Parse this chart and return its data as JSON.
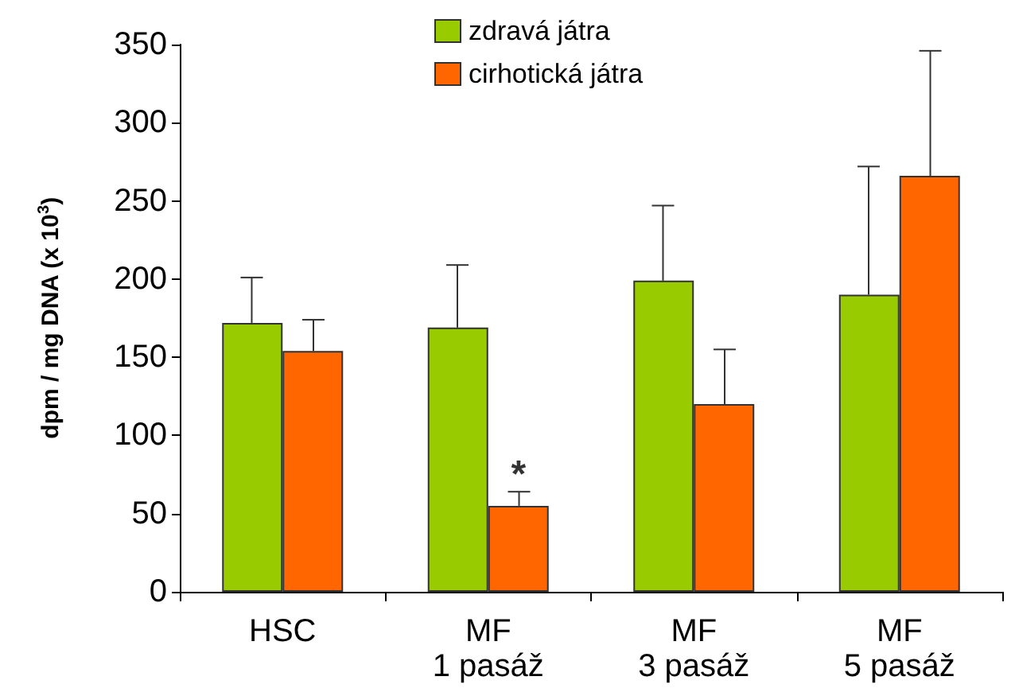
{
  "chart_data": {
    "type": "bar",
    "ylabel": "dpm / mg DNA (x 10$^{3}$)",
    "categories": [
      "HSC",
      "MF\n1 pasáž",
      "MF\n3 pasáž",
      "MF\n5 pasáž"
    ],
    "series": [
      {
        "name": "zdravá játra",
        "color": "#99cc00",
        "values": [
          172,
          169,
          199,
          190
        ],
        "errors": [
          [
            172,
            201
          ],
          [
            169,
            209
          ],
          [
            199,
            247
          ],
          [
            190,
            272
          ]
        ]
      },
      {
        "name": "cirhotická játra",
        "color": "#ff6600",
        "values": [
          154,
          55,
          120,
          266
        ],
        "errors": [
          [
            154,
            174
          ],
          [
            55,
            64
          ],
          [
            120,
            155
          ],
          [
            266,
            346
          ]
        ]
      }
    ],
    "ylim": [
      0,
      350
    ],
    "yticks": [
      0,
      50,
      100,
      150,
      200,
      250,
      300,
      350
    ],
    "annotations": [
      {
        "text": "*",
        "x": "MF\n1 pasáž",
        "y": 75
      }
    ],
    "legend": "top",
    "grid": false
  }
}
